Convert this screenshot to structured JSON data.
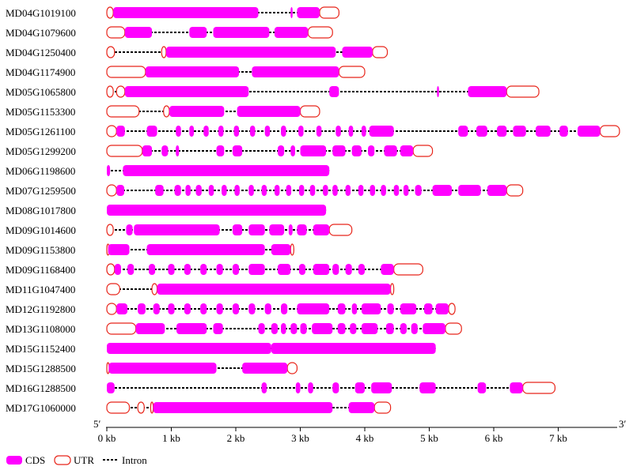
{
  "colors": {
    "cds": "#ff00ff",
    "utr_stroke": "#e8251a",
    "intron": "#000000",
    "axis": "#000000"
  },
  "axis": {
    "max_kb": 8,
    "ticks": [
      {
        "value": 0,
        "label": "0 kb"
      },
      {
        "value": 1,
        "label": "1 kb"
      },
      {
        "value": 2,
        "label": "2 kb"
      },
      {
        "value": 3,
        "label": "3 kb"
      },
      {
        "value": 4,
        "label": "4 kb"
      },
      {
        "value": 5,
        "label": "5 kb"
      },
      {
        "value": 6,
        "label": "6 kb"
      },
      {
        "value": 7,
        "label": "7 kb"
      }
    ],
    "left_label": "5′",
    "right_label": "3′"
  },
  "legend": {
    "cds": "CDS",
    "utr": "UTR",
    "intron": "Intron"
  },
  "genes": [
    {
      "id": "MD04G1019100",
      "utr": [
        [
          0.0,
          0.1
        ],
        [
          3.3,
          3.6
        ]
      ],
      "cds": [
        [
          0.1,
          2.35
        ],
        [
          2.85,
          2.88
        ],
        [
          2.95,
          3.3
        ]
      ]
    },
    {
      "id": "MD04G1079600",
      "utr": [
        [
          0.0,
          0.28
        ],
        [
          3.12,
          3.5
        ]
      ],
      "cds": [
        [
          0.28,
          0.7
        ],
        [
          1.28,
          1.55
        ],
        [
          1.65,
          2.52
        ],
        [
          2.6,
          3.12
        ]
      ]
    },
    {
      "id": "MD04G1250400",
      "utr": [
        [
          0.0,
          0.12
        ],
        [
          0.85,
          0.92
        ],
        [
          4.12,
          4.35
        ]
      ],
      "cds": [
        [
          0.92,
          3.55
        ],
        [
          3.65,
          4.12
        ]
      ]
    },
    {
      "id": "MD04G1174900",
      "utr": [
        [
          0.0,
          0.6
        ],
        [
          3.6,
          4.0
        ]
      ],
      "cds": [
        [
          0.6,
          2.05
        ],
        [
          2.25,
          3.6
        ]
      ]
    },
    {
      "id": "MD05G1065800",
      "utr": [
        [
          0.0,
          0.1
        ],
        [
          0.15,
          0.28
        ],
        [
          6.2,
          6.7
        ]
      ],
      "cds": [
        [
          0.28,
          2.2
        ],
        [
          3.45,
          3.6
        ],
        [
          5.12,
          5.14
        ],
        [
          5.6,
          6.2
        ]
      ]
    },
    {
      "id": "MD05G1153300",
      "utr": [
        [
          0.0,
          0.5
        ],
        [
          0.88,
          0.97
        ],
        [
          3.0,
          3.3
        ]
      ],
      "cds": [
        [
          0.97,
          1.82
        ],
        [
          2.02,
          3.0
        ]
      ]
    },
    {
      "id": "MD05G1261100",
      "utr": [
        [
          0.0,
          0.15
        ],
        [
          7.65,
          7.95
        ]
      ],
      "cds": [
        [
          0.15,
          0.28
        ],
        [
          0.62,
          0.78
        ],
        [
          1.07,
          1.15
        ],
        [
          1.28,
          1.35
        ],
        [
          1.5,
          1.58
        ],
        [
          1.73,
          1.81
        ],
        [
          1.97,
          2.05
        ],
        [
          2.22,
          2.3
        ],
        [
          2.45,
          2.53
        ],
        [
          2.7,
          2.78
        ],
        [
          2.97,
          3.05
        ],
        [
          3.25,
          3.33
        ],
        [
          3.55,
          3.63
        ],
        [
          3.75,
          3.82
        ],
        [
          3.95,
          4.02
        ],
        [
          4.07,
          4.45
        ],
        [
          5.45,
          5.6
        ],
        [
          5.73,
          5.9
        ],
        [
          6.05,
          6.2
        ],
        [
          6.3,
          6.5
        ],
        [
          6.65,
          6.88
        ],
        [
          7.02,
          7.15
        ],
        [
          7.3,
          7.65
        ]
      ]
    },
    {
      "id": "MD05G1299200",
      "utr": [
        [
          0.0,
          0.55
        ],
        [
          4.75,
          5.05
        ]
      ],
      "cds": [
        [
          0.55,
          0.7
        ],
        [
          0.85,
          0.95
        ],
        [
          1.07,
          1.12
        ],
        [
          1.7,
          1.82
        ],
        [
          1.95,
          2.1
        ],
        [
          2.65,
          2.75
        ],
        [
          2.85,
          2.92
        ],
        [
          3.0,
          3.4
        ],
        [
          3.5,
          3.7
        ],
        [
          3.8,
          3.95
        ],
        [
          4.05,
          4.15
        ],
        [
          4.3,
          4.5
        ],
        [
          4.55,
          4.75
        ]
      ]
    },
    {
      "id": "MD06G1198600",
      "utr": [],
      "cds": [
        [
          0.0,
          0.05
        ],
        [
          0.25,
          3.45
        ]
      ]
    },
    {
      "id": "MD07G1259500",
      "utr": [
        [
          0.0,
          0.15
        ],
        [
          6.2,
          6.45
        ]
      ],
      "cds": [
        [
          0.15,
          0.27
        ],
        [
          0.75,
          0.88
        ],
        [
          1.05,
          1.15
        ],
        [
          1.22,
          1.3
        ],
        [
          1.38,
          1.47
        ],
        [
          1.58,
          1.66
        ],
        [
          1.78,
          1.86
        ],
        [
          1.98,
          2.06
        ],
        [
          2.2,
          2.28
        ],
        [
          2.4,
          2.48
        ],
        [
          2.6,
          2.68
        ],
        [
          2.78,
          2.86
        ],
        [
          2.98,
          3.06
        ],
        [
          3.15,
          3.23
        ],
        [
          3.35,
          3.43
        ],
        [
          3.5,
          3.58
        ],
        [
          3.7,
          3.78
        ],
        [
          3.9,
          3.98
        ],
        [
          4.08,
          4.16
        ],
        [
          4.25,
          4.33
        ],
        [
          4.45,
          4.53
        ],
        [
          4.6,
          4.68
        ],
        [
          4.78,
          4.88
        ],
        [
          5.05,
          5.35
        ],
        [
          5.45,
          5.8
        ],
        [
          5.9,
          6.2
        ]
      ]
    },
    {
      "id": "MD08G1017800",
      "utr": [],
      "cds": [
        [
          0.0,
          3.4
        ]
      ]
    },
    {
      "id": "MD09G1014600",
      "utr": [
        [
          0.0,
          0.1
        ],
        [
          3.45,
          3.8
        ]
      ],
      "cds": [
        [
          0.3,
          0.4
        ],
        [
          0.42,
          1.75
        ],
        [
          1.95,
          2.1
        ],
        [
          2.2,
          2.45
        ],
        [
          2.52,
          2.75
        ],
        [
          2.82,
          2.88
        ],
        [
          2.95,
          3.1
        ],
        [
          3.2,
          3.45
        ]
      ]
    },
    {
      "id": "MD09G1153800",
      "utr": [
        [
          0.0,
          0.02
        ],
        [
          2.85,
          2.9
        ]
      ],
      "cds": [
        [
          0.02,
          0.35
        ],
        [
          0.62,
          2.45
        ],
        [
          2.55,
          2.85
        ]
      ]
    },
    {
      "id": "MD09G1168400",
      "utr": [
        [
          0.0,
          0.12
        ],
        [
          4.45,
          4.9
        ]
      ],
      "cds": [
        [
          0.12,
          0.22
        ],
        [
          0.32,
          0.42
        ],
        [
          0.65,
          0.75
        ],
        [
          0.95,
          1.05
        ],
        [
          1.2,
          1.3
        ],
        [
          1.45,
          1.55
        ],
        [
          1.7,
          1.8
        ],
        [
          1.95,
          2.05
        ],
        [
          2.2,
          2.45
        ],
        [
          2.65,
          2.85
        ],
        [
          2.98,
          3.08
        ],
        [
          3.2,
          3.45
        ],
        [
          3.5,
          3.6
        ],
        [
          3.7,
          3.8
        ],
        [
          3.9,
          4.0
        ],
        [
          4.25,
          4.45
        ]
      ]
    },
    {
      "id": "MD11G1047400",
      "utr": [
        [
          0.0,
          0.2
        ],
        [
          0.7,
          0.78
        ],
        [
          4.4,
          4.45
        ]
      ],
      "cds": [
        [
          0.78,
          4.4
        ]
      ]
    },
    {
      "id": "MD12G1192800",
      "utr": [
        [
          0.0,
          0.15
        ],
        [
          5.3,
          5.4
        ]
      ],
      "cds": [
        [
          0.15,
          0.32
        ],
        [
          0.48,
          0.6
        ],
        [
          0.72,
          0.82
        ],
        [
          0.95,
          1.05
        ],
        [
          1.2,
          1.3
        ],
        [
          1.45,
          1.55
        ],
        [
          1.7,
          1.8
        ],
        [
          1.95,
          2.05
        ],
        [
          2.2,
          2.3
        ],
        [
          2.45,
          2.55
        ],
        [
          2.7,
          2.8
        ],
        [
          2.95,
          3.45
        ],
        [
          3.58,
          3.7
        ],
        [
          3.8,
          3.88
        ],
        [
          3.95,
          4.25
        ],
        [
          4.35,
          4.45
        ],
        [
          4.55,
          4.8
        ],
        [
          4.92,
          5.05
        ],
        [
          5.1,
          5.3
        ]
      ]
    },
    {
      "id": "MD13G1108000",
      "utr": [
        [
          0.0,
          0.45
        ],
        [
          5.25,
          5.5
        ]
      ],
      "cds": [
        [
          0.45,
          0.9
        ],
        [
          1.08,
          1.55
        ],
        [
          1.65,
          1.8
        ],
        [
          2.35,
          2.45
        ],
        [
          2.55,
          2.65
        ],
        [
          2.7,
          2.78
        ],
        [
          2.85,
          2.95
        ],
        [
          3.0,
          3.1
        ],
        [
          3.18,
          3.5
        ],
        [
          3.58,
          3.7
        ],
        [
          3.77,
          3.87
        ],
        [
          3.95,
          4.2
        ],
        [
          4.33,
          4.45
        ],
        [
          4.55,
          4.65
        ],
        [
          4.72,
          4.82
        ],
        [
          4.9,
          5.25
        ]
      ]
    },
    {
      "id": "MD15G1152400",
      "utr": [],
      "cds": [
        [
          0.0,
          2.55
        ],
        [
          2.55,
          5.1
        ]
      ]
    },
    {
      "id": "MD15G1288500",
      "utr": [
        [
          0.0,
          0.03
        ],
        [
          2.8,
          2.95
        ]
      ],
      "cds": [
        [
          0.03,
          1.7
        ],
        [
          2.1,
          2.8
        ]
      ]
    },
    {
      "id": "MD16G1288500",
      "utr": [
        [
          6.45,
          6.95
        ]
      ],
      "cds": [
        [
          0.0,
          0.12
        ],
        [
          2.4,
          2.48
        ],
        [
          2.93,
          3.0
        ],
        [
          3.12,
          3.2
        ],
        [
          3.5,
          3.6
        ],
        [
          3.85,
          4.0
        ],
        [
          4.1,
          4.42
        ],
        [
          4.85,
          5.1
        ],
        [
          5.75,
          5.88
        ],
        [
          6.25,
          6.45
        ]
      ]
    },
    {
      "id": "MD17G1060000",
      "utr": [
        [
          0.0,
          0.35
        ],
        [
          0.48,
          0.58
        ],
        [
          0.68,
          0.72
        ],
        [
          4.15,
          4.4
        ]
      ],
      "cds": [
        [
          0.72,
          3.5
        ],
        [
          3.75,
          4.15
        ]
      ]
    }
  ]
}
